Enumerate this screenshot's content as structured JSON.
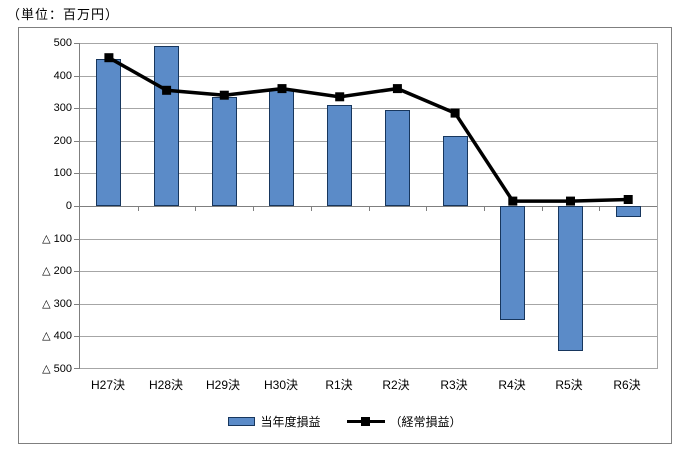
{
  "page": {
    "unit_label": "（単位：百万円）"
  },
  "chart_data": {
    "type": "bar",
    "title": "（単位：百万円）",
    "categories": [
      "H27決",
      "H28決",
      "H29決",
      "H30決",
      "R1決",
      "R2決",
      "R3決",
      "R4決",
      "R5決",
      "R6決"
    ],
    "series": [
      {
        "name": "当年度損益",
        "type": "bar",
        "values": [
          450,
          490,
          335,
          355,
          310,
          295,
          215,
          -350,
          -445,
          -35
        ]
      },
      {
        "name": "（経常損益）",
        "type": "line",
        "marker": "square",
        "values": [
          455,
          355,
          340,
          360,
          335,
          360,
          285,
          15,
          15,
          20
        ]
      }
    ],
    "xlabel": "",
    "ylabel": "",
    "ylim": [
      -500,
      500
    ],
    "ytick_step": 100,
    "ytick_labels": [
      "500",
      "400",
      "300",
      "200",
      "100",
      "0",
      "△ 100",
      "△ 200",
      "△ 300",
      "△ 400",
      "△ 500"
    ],
    "grid": true,
    "legend_position": "bottom",
    "negative_style": "triangle-prefix",
    "colors": {
      "bar_fill": "#5b8bc8",
      "bar_border": "#17365d",
      "line": "#000000",
      "grid": "#a6a6a6",
      "axis": "#7f7f7f"
    }
  }
}
